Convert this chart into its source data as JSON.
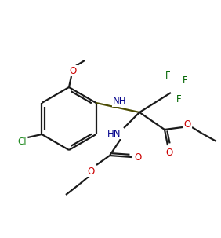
{
  "bg_color": "#ffffff",
  "line_color": "#1a1a1a",
  "bond_color": "#4a4a00",
  "atom_colors": {
    "N": "#00008b",
    "O": "#cc0000",
    "F": "#006400",
    "Cl": "#228B22"
  },
  "figsize": [
    2.82,
    3.03
  ],
  "dpi": 100,
  "lw": 1.6
}
